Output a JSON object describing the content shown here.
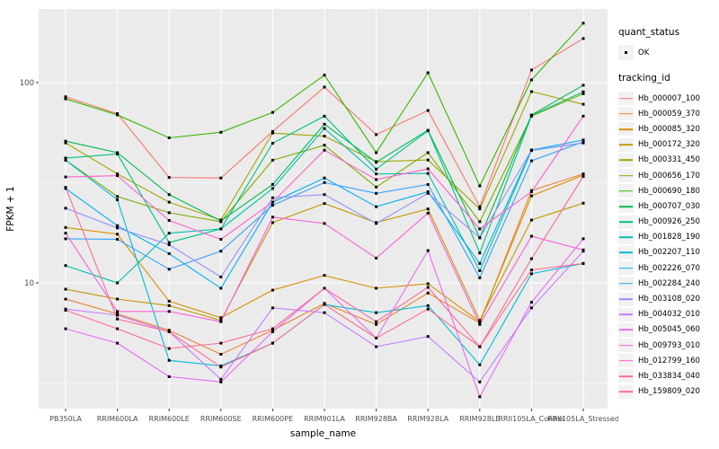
{
  "legend": {
    "quant_status_title": "quant_status",
    "quant_status_items": [
      {
        "label": "OK",
        "shape": "filled-square-point"
      }
    ],
    "tracking_id_title": "tracking_id"
  },
  "chart_data": {
    "type": "line",
    "title": "",
    "xlabel": "sample_name",
    "ylabel": "FPKM + 1",
    "y_scale": "log10",
    "y_tick_labels": [
      "10",
      "100"
    ],
    "y_ticks": [
      10,
      100
    ],
    "y_minor_gridlines": [
      3.162,
      31.62
    ],
    "ylim": [
      2.35,
      233
    ],
    "grid": "on",
    "panel_background": "#EBEBEB",
    "grid_color": "#FFFFFF",
    "tick_label_color": "#4D4D4D",
    "point_color": "#000000",
    "point_shape": "filled-square",
    "legend_position": "right",
    "categories": [
      "PB350LA",
      "RRIM600LA",
      "RRIM600LE",
      "RRIM600SE",
      "RRIM600PE",
      "RRIM901LA",
      "RRIM928BA",
      "RRIM928LA",
      "RRIM928LE",
      "RRII105LA_Control",
      "RRII105LA_Stressed"
    ],
    "series": [
      {
        "tracking_id": "Hb_000007_100",
        "quant_status": "OK",
        "color": "#F8766D",
        "values": [
          85,
          70,
          33.6,
          33.4,
          57,
          95,
          55,
          72.6,
          24,
          115.6,
          166
        ]
      },
      {
        "tracking_id": "Hb_000059_370",
        "quant_status": "OK",
        "color": "#EA8331",
        "values": [
          8.3,
          7.0,
          5.8,
          4.4,
          5.8,
          7.9,
          6.2,
          8.9,
          6.3,
          28.9,
          35
        ]
      },
      {
        "tracking_id": "Hb_000085_320",
        "quant_status": "OK",
        "color": "#D89000",
        "values": [
          18.9,
          17.5,
          8.1,
          6.7,
          9.2,
          10.9,
          9.4,
          9.9,
          6.4,
          27.2,
          34.5
        ]
      },
      {
        "tracking_id": "Hb_000172_320",
        "quant_status": "OK",
        "color": "#C09B00",
        "values": [
          9.3,
          8.3,
          7.7,
          6.5,
          20.0,
          24.9,
          20.0,
          23.4,
          6.5,
          20.6,
          25
        ]
      },
      {
        "tracking_id": "Hb_000331_450",
        "quant_status": "OK",
        "color": "#A3A500",
        "values": [
          50,
          35,
          25.3,
          20.6,
          56,
          54,
          40.3,
          41.1,
          23.4,
          90.2,
          78
        ]
      },
      {
        "tracking_id": "Hb_000656_170",
        "quant_status": "OK",
        "color": "#7CAE00",
        "values": [
          41,
          27,
          22.4,
          20.2,
          41,
          48.7,
          30.1,
          44.7,
          20.2,
          68,
          88
        ]
      },
      {
        "tracking_id": "Hb_000690_180",
        "quant_status": "OK",
        "color": "#39B600",
        "values": [
          83,
          69,
          53,
          56.5,
          71,
          109,
          44.7,
          112,
          30.5,
          103.2,
          198
        ]
      },
      {
        "tracking_id": "Hb_000707_030",
        "quant_status": "OK",
        "color": "#00BB4E",
        "values": [
          51,
          44.7,
          27.6,
          20.4,
          31,
          62,
          40,
          57.8,
          16.8,
          68.9,
          97
        ]
      },
      {
        "tracking_id": "Hb_000926_250",
        "quant_status": "OK",
        "color": "#00C087",
        "values": [
          42,
          44,
          15.9,
          18.6,
          49.8,
          68,
          37,
          57.5,
          14.1,
          68.5,
          90
        ]
      },
      {
        "tracking_id": "Hb_001828_190",
        "quant_status": "OK",
        "color": "#00C0AF",
        "values": [
          12.2,
          10,
          17.7,
          18.6,
          29.6,
          59,
          35,
          35.2,
          11.5,
          45.8,
          50
        ]
      },
      {
        "tracking_id": "Hb_002207_110",
        "quant_status": "OK",
        "color": "#00BCD8",
        "values": [
          41,
          26,
          4.1,
          3.85,
          5.0,
          7.8,
          7.1,
          7.7,
          3.9,
          11.1,
          12.5
        ]
      },
      {
        "tracking_id": "Hb_002226_070",
        "quant_status": "OK",
        "color": "#00B0F6",
        "values": [
          29.6,
          19.3,
          14.0,
          9.4,
          25.3,
          33.4,
          24,
          28.5,
          12.5,
          46.1,
          51.7
        ]
      },
      {
        "tracking_id": "Hb_002284_240",
        "quant_status": "OK",
        "color": "#35A2FF",
        "values": [
          16.6,
          16.5,
          11.7,
          14.4,
          24.4,
          31.7,
          28,
          31,
          10.6,
          40.7,
          50.6
        ]
      },
      {
        "tracking_id": "Hb_003108_020",
        "quant_status": "OK",
        "color": "#9590FF",
        "values": [
          23.6,
          18.8,
          15.5,
          10.7,
          26.6,
          27.6,
          19.8,
          28,
          16.8,
          46,
          50
        ]
      },
      {
        "tracking_id": "Hb_004032_010",
        "quant_status": "OK",
        "color": "#C77CFF",
        "values": [
          7.4,
          6.9,
          5.7,
          3.3,
          7.5,
          7.1,
          4.8,
          5.4,
          3.2,
          7.5,
          14.4
        ]
      },
      {
        "tracking_id": "Hb_005045_060",
        "quant_status": "OK",
        "color": "#E76BF3",
        "values": [
          5.9,
          5.0,
          3.4,
          3.2,
          5.7,
          9.4,
          5.3,
          14.5,
          2.7,
          8.0,
          16.6
        ]
      },
      {
        "tracking_id": "Hb_009793_010",
        "quant_status": "OK",
        "color": "#FA62DB",
        "values": [
          17.7,
          7.2,
          7.2,
          6.4,
          21.3,
          19.8,
          13.3,
          22.3,
          6.2,
          17.1,
          14.6
        ]
      },
      {
        "tracking_id": "Hb_012799_160",
        "quant_status": "OK",
        "color": "#FF61CC",
        "values": [
          33.8,
          34.3,
          20.5,
          16.5,
          25.3,
          46,
          32.8,
          37.1,
          18.6,
          28.5,
          68
        ]
      },
      {
        "tracking_id": "Hb_033834_040",
        "quant_status": "OK",
        "color": "#FF6A98",
        "values": [
          7.3,
          5.9,
          4.7,
          5.0,
          5.9,
          9.4,
          6.4,
          9.5,
          4.8,
          13.2,
          34
        ]
      },
      {
        "tracking_id": "Hb_159809_020",
        "quant_status": "OK",
        "color": "#FF6C91",
        "values": [
          30,
          6.6,
          5.7,
          3.8,
          5.0,
          7.8,
          5.3,
          7.4,
          4.8,
          11.6,
          12.5
        ]
      }
    ]
  }
}
